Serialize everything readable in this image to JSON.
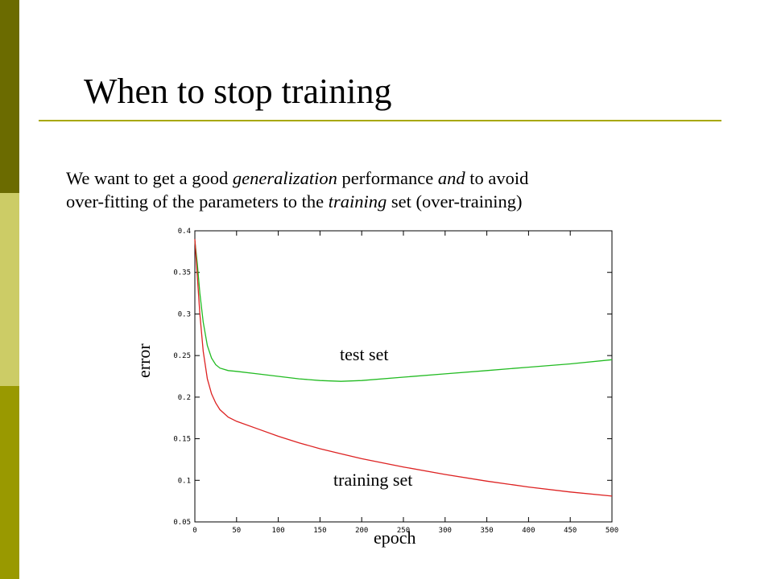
{
  "slide": {
    "title": "When to stop training",
    "body": {
      "line1": [
        {
          "text": "We want to get a good ",
          "italic": false
        },
        {
          "text": "generalization",
          "italic": true
        },
        {
          "text": " performance ",
          "italic": false
        },
        {
          "text": "and",
          "italic": true
        },
        {
          "text": " to avoid",
          "italic": false
        }
      ],
      "line2": [
        {
          "text": "over-fitting of the parameters to the ",
          "italic": false
        },
        {
          "text": "training",
          "italic": true
        },
        {
          "text": " set (over-training)",
          "italic": false
        }
      ]
    },
    "accent_colors": {
      "bar_top": "#6b6b00",
      "bar_mid": "#cccc66",
      "bar_bottom": "#999900",
      "rule": "#a8a800"
    }
  },
  "chart_data": {
    "type": "line",
    "xlabel": "epoch",
    "ylabel": "error",
    "xlim": [
      0,
      500
    ],
    "ylim": [
      0.05,
      0.4
    ],
    "x_ticks": [
      "0",
      "50",
      "100",
      "150",
      "200",
      "250",
      "300",
      "350",
      "400",
      "450",
      "500"
    ],
    "y_ticks": [
      "0.05",
      "0.1",
      "0.15",
      "0.2",
      "0.25",
      "0.3",
      "0.35",
      "0.4"
    ],
    "grid": false,
    "series": [
      {
        "name": "test set",
        "color": "#22bb22",
        "x": [
          0,
          3,
          6,
          10,
          15,
          20,
          25,
          30,
          40,
          50,
          75,
          100,
          125,
          150,
          175,
          200,
          250,
          300,
          350,
          400,
          450,
          500
        ],
        "y": [
          0.388,
          0.36,
          0.325,
          0.29,
          0.262,
          0.247,
          0.239,
          0.235,
          0.232,
          0.231,
          0.228,
          0.225,
          0.222,
          0.22,
          0.219,
          0.22,
          0.224,
          0.228,
          0.232,
          0.236,
          0.24,
          0.245
        ]
      },
      {
        "name": "training set",
        "color": "#dd2222",
        "x": [
          0,
          3,
          6,
          10,
          15,
          20,
          25,
          30,
          40,
          50,
          75,
          100,
          125,
          150,
          175,
          200,
          250,
          300,
          350,
          400,
          450,
          500
        ],
        "y": [
          0.39,
          0.345,
          0.3,
          0.255,
          0.222,
          0.204,
          0.193,
          0.185,
          0.176,
          0.171,
          0.162,
          0.153,
          0.145,
          0.138,
          0.132,
          0.126,
          0.116,
          0.107,
          0.099,
          0.092,
          0.086,
          0.081
        ]
      }
    ]
  }
}
